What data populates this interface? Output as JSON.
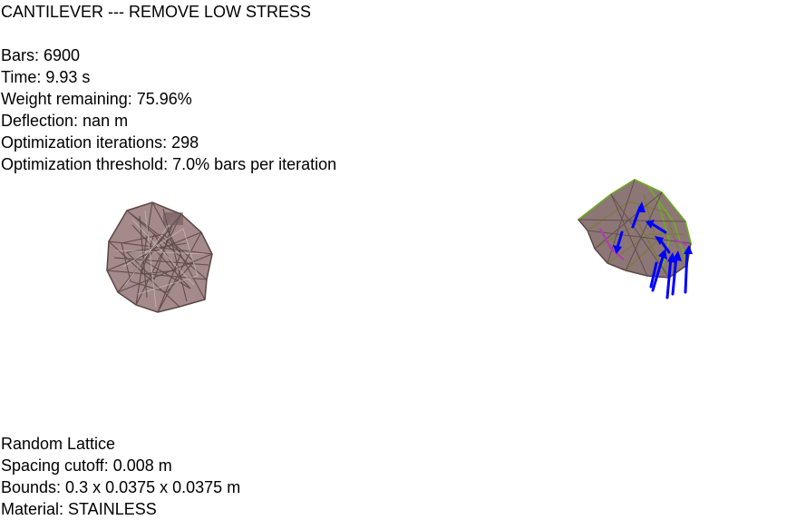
{
  "title": "CANTILEVER --- REMOVE LOW STRESS",
  "stats": {
    "bars": "Bars: 6900",
    "time": "Time: 9.93 s",
    "weight": "Weight remaining: 75.96%",
    "deflection": "Deflection: nan m",
    "iterations": "Optimization iterations: 298",
    "threshold": "Optimization threshold: 7.0% bars per iteration"
  },
  "lattice": {
    "type": "Random Lattice",
    "spacing": "Spacing cutoff: 0.008 m",
    "bounds": "Bounds: 0.3 x 0.0375 x 0.0375 m",
    "material": "Material: STAINLESS"
  },
  "colors": {
    "background": "#ffffff",
    "text": "#000000",
    "lattice_base": "#a48a8a",
    "lattice_dark": "#5a4646",
    "stress_green": "#6fae24",
    "stress_olive": "#7d7a3c",
    "stress_magenta": "#b03ab8",
    "load_arrow": "#0000ff"
  },
  "views": {
    "left": "original-lattice-render",
    "right": "optimized-lattice-stress-render"
  }
}
